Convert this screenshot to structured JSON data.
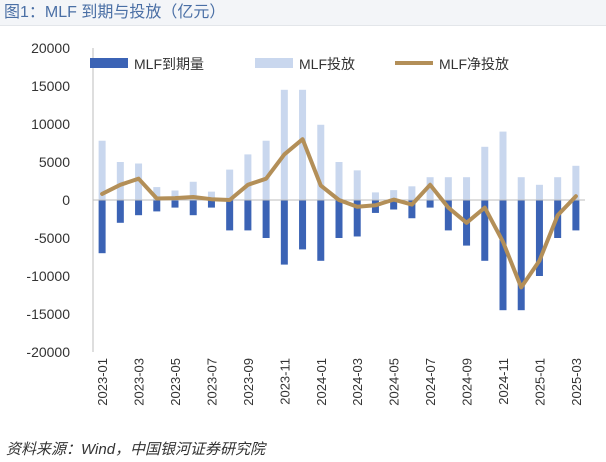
{
  "header": {
    "title": "图1：MLF 到期与投放（亿元）"
  },
  "footer": {
    "source": "资料来源：Wind，中国银河证券研究院"
  },
  "colors": {
    "expiry": "#3b63b5",
    "issue": "#c9d7ee",
    "net": "#b38f58"
  },
  "chart_data": {
    "type": "bar",
    "title": "",
    "xlabel": "",
    "ylabel": "",
    "ylim": [
      -20000,
      20000
    ],
    "yticks": [
      20000,
      15000,
      10000,
      5000,
      0,
      -5000,
      -10000,
      -15000,
      -20000
    ],
    "categories": [
      "2023-01",
      "2023-02",
      "2023-03",
      "2023-04",
      "2023-05",
      "2023-06",
      "2023-07",
      "2023-08",
      "2023-09",
      "2023-10",
      "2023-11",
      "2023-12",
      "2024-01",
      "2024-02",
      "2024-03",
      "2024-04",
      "2024-05",
      "2024-06",
      "2024-07",
      "2024-08",
      "2024-09",
      "2024-10",
      "2024-11",
      "2024-12",
      "2025-01",
      "2025-02",
      "2025-03"
    ],
    "xtick_labels": [
      "2023-01",
      "2023-03",
      "2023-05",
      "2023-07",
      "2023-09",
      "2023-11",
      "2024-01",
      "2024-03",
      "2024-05",
      "2024-07",
      "2024-09",
      "2024-11",
      "2025-01",
      "2025-03"
    ],
    "legend_position": "top",
    "series": [
      {
        "name": "MLF到期量",
        "kind": "bar-negative",
        "values": [
          -7000,
          -3000,
          -2000,
          -1500,
          -1000,
          -2000,
          -1000,
          -4000,
          -4000,
          -5000,
          -8500,
          -6500,
          -8000,
          -5000,
          -4800,
          -1700,
          -1250,
          -2400,
          -1000,
          -4000,
          -6000,
          -8000,
          -14500,
          -14500,
          -10000,
          -5000,
          -4000
        ]
      },
      {
        "name": "MLF投放",
        "kind": "bar-positive",
        "values": [
          7800,
          5000,
          4800,
          1700,
          1250,
          2400,
          1100,
          4000,
          6000,
          7800,
          14500,
          14500,
          9900,
          5000,
          3900,
          1000,
          1300,
          1800,
          3000,
          3000,
          3000,
          7000,
          9000,
          3000,
          2000,
          3000,
          4500
        ]
      },
      {
        "name": "MLF净投放",
        "kind": "line",
        "values": [
          800,
          2000,
          2800,
          200,
          250,
          400,
          100,
          0,
          2000,
          2800,
          6000,
          8000,
          1900,
          0,
          -900,
          -700,
          50,
          -600,
          2000,
          -1000,
          -3000,
          -1000,
          -5500,
          -11500,
          -8000,
          -2000,
          500
        ]
      }
    ]
  }
}
